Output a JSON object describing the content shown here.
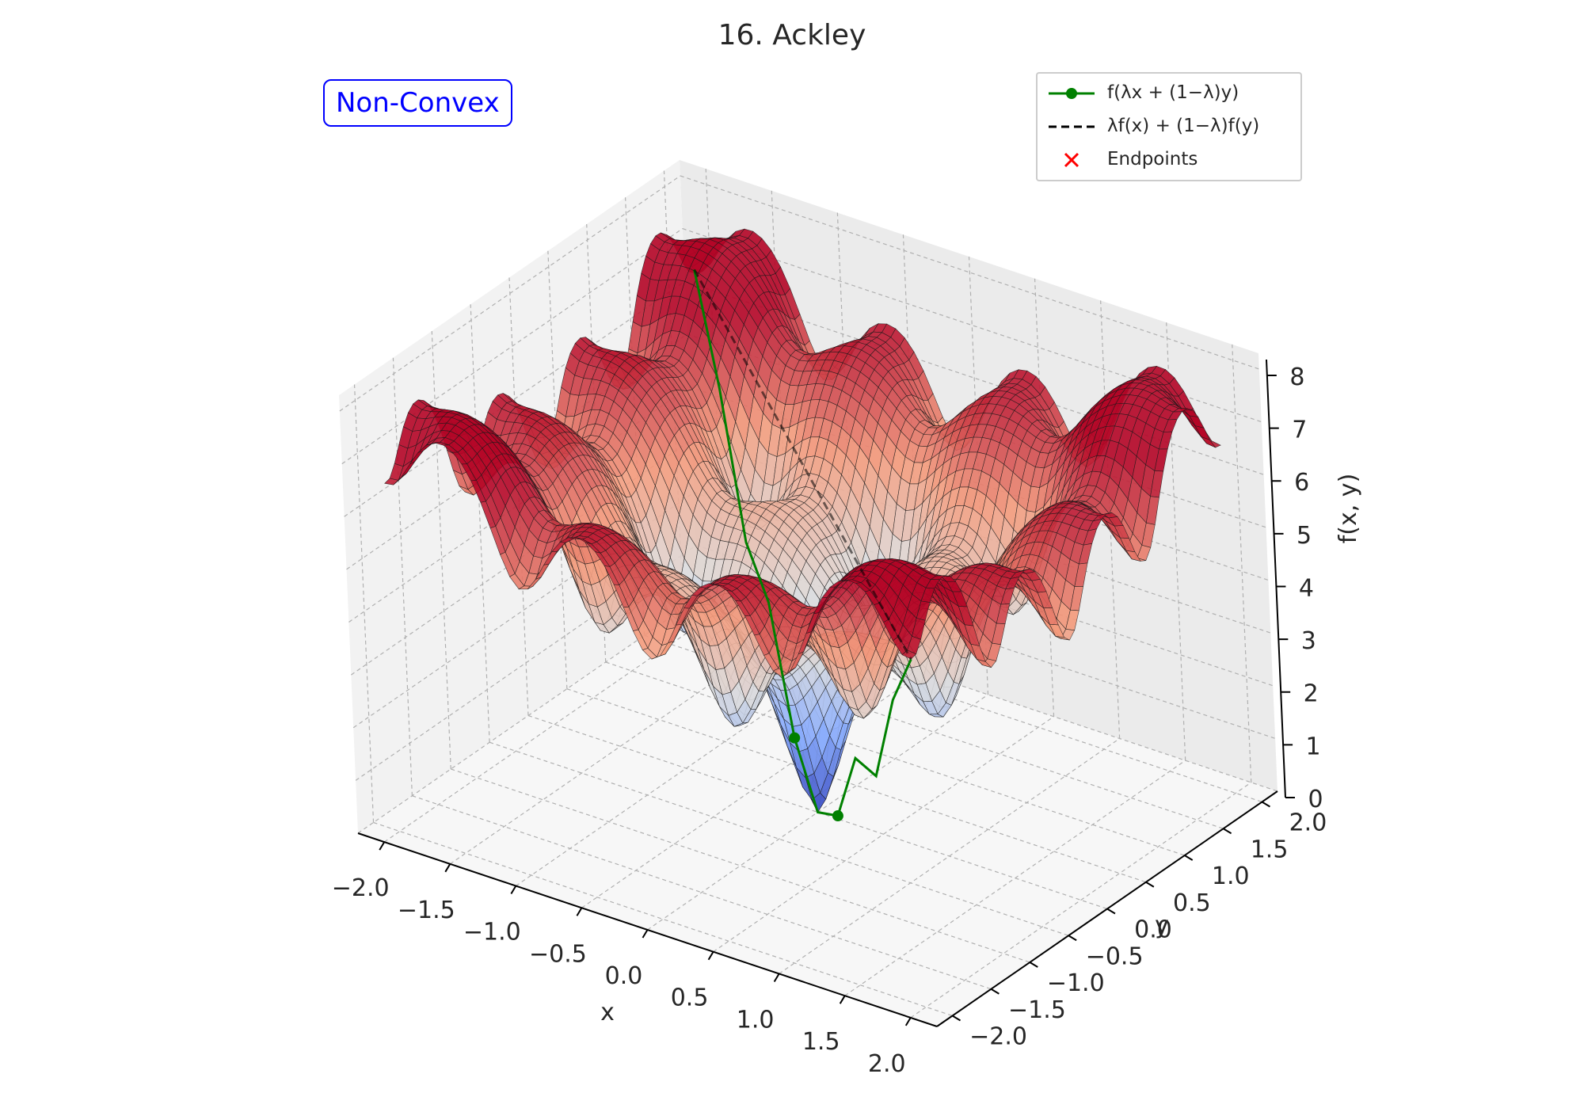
{
  "title": "16. Ackley",
  "badge": "Non-Convex",
  "legend": {
    "items": [
      {
        "label": "f(λx + (1−λ)y)",
        "color": "#008000",
        "style": "solid-marker"
      },
      {
        "label": "λf(x) + (1−λ)f(y)",
        "color": "#000000",
        "style": "dashed"
      },
      {
        "label": "Endpoints",
        "color": "#ff0000",
        "style": "x-marker"
      }
    ],
    "placement": "top-right"
  },
  "chart_data": {
    "type": "surface3d",
    "function": "Ackley",
    "colormap": "coolwarm",
    "xlabel": "x",
    "ylabel": "y",
    "zlabel": "f(x, y)",
    "xlim": [
      -2.2,
      2.2
    ],
    "ylim": [
      -2.2,
      2.2
    ],
    "zlim": [
      0,
      8.3
    ],
    "x_ticks": [
      "−2.0",
      "−1.5",
      "−1.0",
      "−0.5",
      "0.0",
      "0.5",
      "1.0",
      "1.5",
      "2.0"
    ],
    "y_ticks": [
      "−2.0",
      "−1.5",
      "−1.0",
      "−0.5",
      "0.0",
      "0.5",
      "1.0",
      "1.5",
      "2.0"
    ],
    "z_ticks": [
      "0",
      "1",
      "2",
      "3",
      "4",
      "5",
      "6",
      "7",
      "8"
    ],
    "grid": true,
    "segment": {
      "start": [
        -2,
        2
      ],
      "end": [
        2,
        -2
      ],
      "f_start": 6.59,
      "f_end": 6.59,
      "series": [
        {
          "name": "f(λx + (1−λ)y)",
          "lambda": [
            0,
            0.1,
            0.2,
            0.3,
            0.4,
            0.5,
            0.6,
            0.7,
            0.8,
            0.9,
            1
          ],
          "values": [
            6.59,
            5.08,
            2.9,
            2.5,
            0.67,
            0.0,
            0.67,
            2.5,
            2.9,
            5.08,
            6.59
          ]
        },
        {
          "name": "λf(x) + (1−λ)f(y)",
          "lambda": [
            0,
            1
          ],
          "values": [
            6.59,
            6.59
          ]
        }
      ]
    }
  }
}
